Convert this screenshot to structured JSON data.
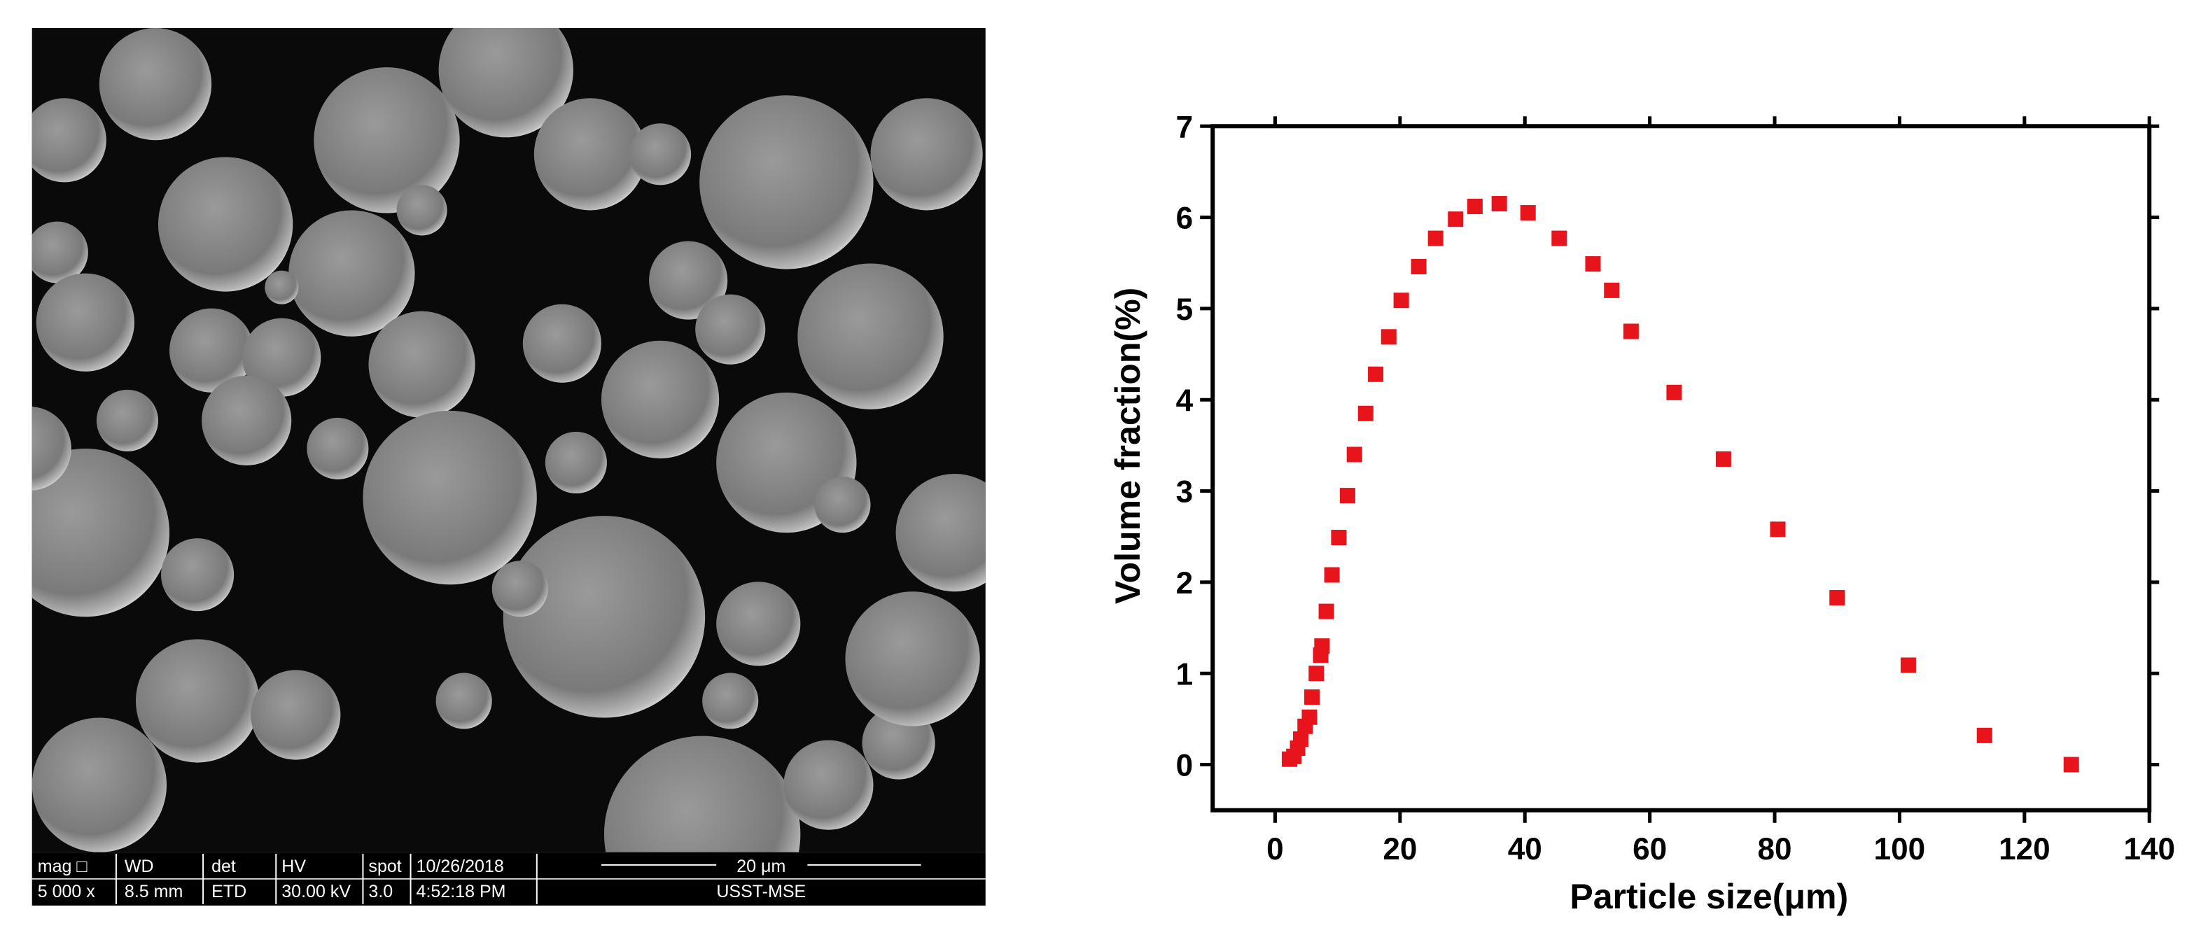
{
  "sem_info": {
    "rows": [
      [
        "mag □",
        "WD",
        "det",
        "HV",
        "spot",
        "10/26/2018",
        "20 μm"
      ],
      [
        "5 000 x",
        "8.5 mm",
        "ETD",
        "30.00 kV",
        "3.0",
        "4:52:18 PM",
        "USST-MSE"
      ]
    ]
  },
  "chart_data": {
    "type": "scatter",
    "xlabel": "Particle size(μm)",
    "ylabel": "Volume fraction(%)",
    "x": [
      2.3,
      3.0,
      3.6,
      4.1,
      4.8,
      5.5,
      5.9,
      6.6,
      7.3,
      7.5,
      8.2,
      9.1,
      10.2,
      11.6,
      12.7,
      14.5,
      16.1,
      18.2,
      20.2,
      23.0,
      25.7,
      28.9,
      32.0,
      35.9,
      40.5,
      45.5,
      50.9,
      53.9,
      57.0,
      63.9,
      71.8,
      80.5,
      90.0,
      101.4,
      113.6,
      127.5
    ],
    "values": [
      0.06,
      0.09,
      0.18,
      0.28,
      0.42,
      0.52,
      0.74,
      1.0,
      1.2,
      1.3,
      1.68,
      2.08,
      2.49,
      2.95,
      3.4,
      3.85,
      4.28,
      4.69,
      5.09,
      5.46,
      5.77,
      5.98,
      6.12,
      6.15,
      6.05,
      5.77,
      5.49,
      5.2,
      4.75,
      4.08,
      3.35,
      2.58,
      1.83,
      1.09,
      0.32,
      0.0
    ],
    "color": "#e8141c",
    "xlim": [
      -10,
      140
    ],
    "xticks": [
      0,
      20,
      40,
      60,
      80,
      100,
      120,
      140
    ],
    "ylim": [
      -0.5,
      7
    ],
    "yticks": [
      0,
      1,
      2,
      3,
      4,
      5,
      6,
      7
    ]
  }
}
